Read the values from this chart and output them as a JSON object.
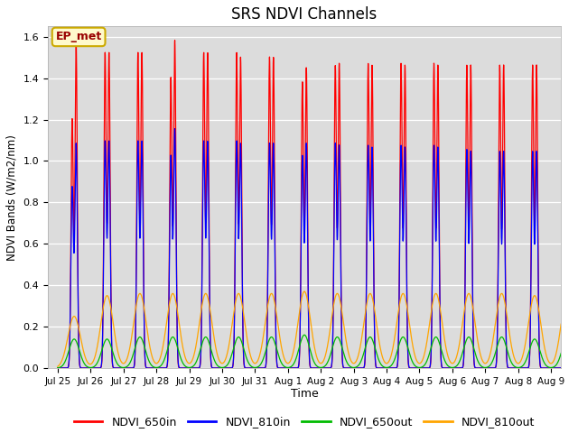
{
  "title": "SRS NDVI Channels",
  "ylabel": "NDVI Bands (W/m2/nm)",
  "xlabel": "Time",
  "annotation": "EP_met",
  "bg_color": "#dcdcdc",
  "ylim": [
    0,
    1.65
  ],
  "series_names": [
    "NDVI_650in",
    "NDVI_810in",
    "NDVI_650out",
    "NDVI_810out"
  ],
  "series_colors": [
    "#ff0000",
    "#0000ff",
    "#00bb00",
    "#ffa500"
  ],
  "peak_heights_650in": [
    1.2,
    1.57,
    1.52,
    1.52,
    1.52,
    1.52,
    1.4,
    1.58,
    1.52,
    1.52,
    1.52,
    1.5,
    1.5,
    1.5,
    1.38,
    1.45,
    1.46,
    1.47,
    1.47,
    1.46,
    1.47,
    1.46,
    1.47,
    1.46,
    1.46,
    1.46
  ],
  "peak_heights_810in": [
    0.87,
    1.08,
    1.09,
    1.09,
    1.09,
    1.09,
    1.02,
    1.15,
    1.09,
    1.09,
    1.09,
    1.08,
    1.08,
    1.08,
    1.02,
    1.08,
    1.08,
    1.07,
    1.07,
    1.06,
    1.07,
    1.06,
    1.07,
    1.06,
    1.05,
    1.04
  ],
  "peak_heights_650out": [
    0.14,
    0.14,
    0.15,
    0.15,
    0.15,
    0.15,
    0.15,
    0.16,
    0.15,
    0.15,
    0.15,
    0.15,
    0.15,
    0.15,
    0.14,
    0.15,
    0.15,
    0.15,
    0.15,
    0.15,
    0.15,
    0.15,
    0.15,
    0.15,
    0.14,
    0.14
  ],
  "peak_heights_810out": [
    0.25,
    0.35,
    0.36,
    0.36,
    0.36,
    0.36,
    0.36,
    0.37,
    0.36,
    0.36,
    0.36,
    0.36,
    0.36,
    0.36,
    0.35,
    0.36,
    0.36,
    0.35,
    0.35,
    0.35,
    0.35,
    0.35,
    0.35,
    0.35,
    0.34,
    0.33
  ],
  "tick_labels": [
    "Jul 25",
    "Jul 26",
    "Jul 27",
    "Jul 28",
    "Jul 29",
    "Jul 30",
    "Jul 31",
    "Aug 1",
    "Aug 2",
    "Aug 3",
    "Aug 4",
    "Aug 5",
    "Aug 6",
    "Aug 7",
    "Aug 8",
    "Aug 9"
  ],
  "n_days": 16,
  "points_per_day": 200
}
